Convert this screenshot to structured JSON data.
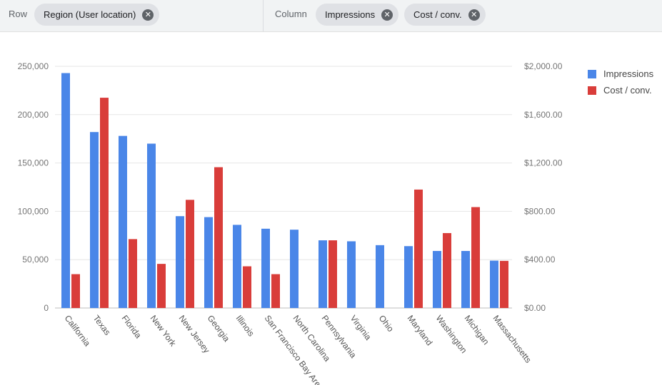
{
  "toolbar": {
    "row_label": "Row",
    "row_chips": [
      {
        "label": "Region (User location)"
      }
    ],
    "column_label": "Column",
    "column_chips": [
      {
        "label": "Impressions"
      },
      {
        "label": "Cost / conv."
      }
    ],
    "close_glyph": "✕"
  },
  "chart_data": {
    "type": "bar",
    "categories": [
      "California",
      "Texas",
      "Florida",
      "New York",
      "New Jersey",
      "Georgia",
      "Illinois",
      "San Francisco Bay Area",
      "North Carolina",
      "Pennsylvania",
      "Virginia",
      "Ohio",
      "Maryland",
      "Washington",
      "Michigan",
      "Massachusetts"
    ],
    "series": [
      {
        "name": "Impressions",
        "axis": "left",
        "color": "#4a86e8",
        "values": [
          243000,
          182000,
          178000,
          170000,
          95000,
          94000,
          86000,
          82000,
          81000,
          70000,
          69000,
          65000,
          64000,
          59000,
          59000,
          49000
        ]
      },
      {
        "name": "Cost / conv.",
        "axis": "right",
        "color": "#d93d3a",
        "values": [
          280,
          1740,
          570,
          365,
          895,
          1165,
          345,
          280,
          null,
          560,
          null,
          null,
          980,
          620,
          835,
          390
        ]
      }
    ],
    "y_left": {
      "min": 0,
      "max": 250000,
      "ticks": [
        "250,000",
        "200,000",
        "150,000",
        "100,000",
        "50,000",
        "0"
      ]
    },
    "y_right": {
      "min": 0,
      "max": 2000,
      "ticks": [
        "$2,000.00",
        "$1,600.00",
        "$1,200.00",
        "$800.00",
        "$400.00",
        "$0.00"
      ]
    },
    "grid": true,
    "legend_position": "right"
  }
}
